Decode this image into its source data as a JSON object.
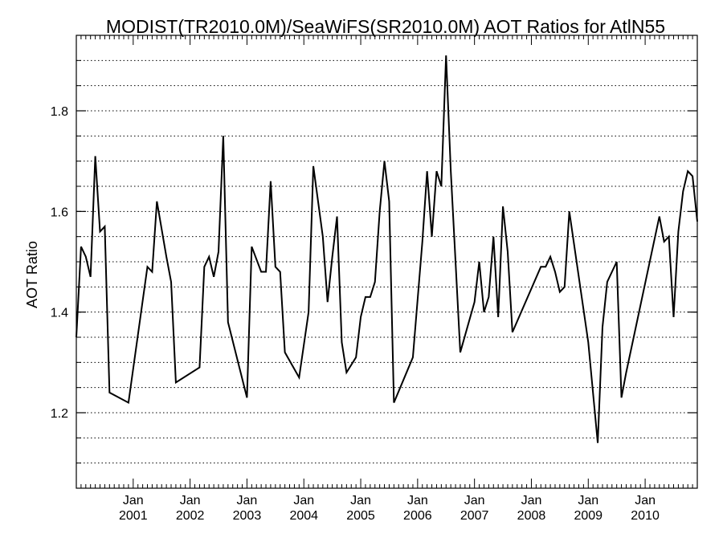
{
  "chart_data": {
    "type": "line",
    "title": "MODIST(TR2010.0M)/SeaWiFS(SR2010.0M)  AOT Ratios for AtlN55",
    "xlabel": "",
    "ylabel": "AOT Ratio",
    "xlim": [
      "2000-01",
      "2010-12"
    ],
    "ylim": [
      1.05,
      1.95
    ],
    "y_ticks": [
      1.2,
      1.4,
      1.6,
      1.8
    ],
    "y_tick_labels": [
      "1.2",
      "1.4",
      "1.6",
      "1.8"
    ],
    "y_minor_step": 0.05,
    "x_ticks": [
      {
        "month": "Jan",
        "year": "2001",
        "date": "2001-01"
      },
      {
        "month": "Jan",
        "year": "2002",
        "date": "2002-01"
      },
      {
        "month": "Jan",
        "year": "2003",
        "date": "2003-01"
      },
      {
        "month": "Jan",
        "year": "2004",
        "date": "2004-01"
      },
      {
        "month": "Jan",
        "year": "2005",
        "date": "2005-01"
      },
      {
        "month": "Jan",
        "year": "2006",
        "date": "2006-01"
      },
      {
        "month": "Jan",
        "year": "2007",
        "date": "2007-01"
      },
      {
        "month": "Jan",
        "year": "2008",
        "date": "2008-01"
      },
      {
        "month": "Jan",
        "year": "2009",
        "date": "2009-01"
      },
      {
        "month": "Jan",
        "year": "2010",
        "date": "2010-01"
      }
    ],
    "grid": "horizontal-dotted",
    "series": [
      {
        "color": "#000000",
        "points": [
          [
            "2000-01",
            1.35
          ],
          [
            "2000-02",
            1.53
          ],
          [
            "2000-03",
            1.51
          ],
          [
            "2000-04",
            1.47
          ],
          [
            "2000-05",
            1.71
          ],
          [
            "2000-06",
            1.56
          ],
          [
            "2000-07",
            1.57
          ],
          [
            "2000-08",
            1.24
          ],
          [
            "2000-12",
            1.22
          ],
          [
            "2001-04",
            1.49
          ],
          [
            "2001-05",
            1.48
          ],
          [
            "2001-06",
            1.62
          ],
          [
            "2001-08",
            1.51
          ],
          [
            "2001-09",
            1.46
          ],
          [
            "2001-10",
            1.26
          ],
          [
            "2002-03",
            1.29
          ],
          [
            "2002-04",
            1.49
          ],
          [
            "2002-05",
            1.51
          ],
          [
            "2002-06",
            1.47
          ],
          [
            "2002-07",
            1.52
          ],
          [
            "2002-08",
            1.75
          ],
          [
            "2002-09",
            1.38
          ],
          [
            "2003-01",
            1.23
          ],
          [
            "2003-02",
            1.53
          ],
          [
            "2003-04",
            1.48
          ],
          [
            "2003-05",
            1.48
          ],
          [
            "2003-06",
            1.66
          ],
          [
            "2003-07",
            1.49
          ],
          [
            "2003-08",
            1.48
          ],
          [
            "2003-09",
            1.32
          ],
          [
            "2003-12",
            1.27
          ],
          [
            "2004-02",
            1.4
          ],
          [
            "2004-03",
            1.69
          ],
          [
            "2004-05",
            1.55
          ],
          [
            "2004-06",
            1.42
          ],
          [
            "2004-07",
            1.51
          ],
          [
            "2004-08",
            1.59
          ],
          [
            "2004-09",
            1.34
          ],
          [
            "2004-10",
            1.28
          ],
          [
            "2004-12",
            1.31
          ],
          [
            "2005-01",
            1.39
          ],
          [
            "2005-02",
            1.43
          ],
          [
            "2005-03",
            1.43
          ],
          [
            "2005-04",
            1.46
          ],
          [
            "2005-05",
            1.6
          ],
          [
            "2005-06",
            1.7
          ],
          [
            "2005-07",
            1.62
          ],
          [
            "2005-08",
            1.22
          ],
          [
            "2005-12",
            1.31
          ],
          [
            "2006-02",
            1.54
          ],
          [
            "2006-03",
            1.68
          ],
          [
            "2006-04",
            1.55
          ],
          [
            "2006-05",
            1.68
          ],
          [
            "2006-06",
            1.65
          ],
          [
            "2006-07",
            1.91
          ],
          [
            "2006-08",
            1.68
          ],
          [
            "2006-10",
            1.32
          ],
          [
            "2007-01",
            1.42
          ],
          [
            "2007-02",
            1.5
          ],
          [
            "2007-03",
            1.4
          ],
          [
            "2007-04",
            1.43
          ],
          [
            "2007-05",
            1.55
          ],
          [
            "2007-06",
            1.39
          ],
          [
            "2007-07",
            1.61
          ],
          [
            "2007-08",
            1.52
          ],
          [
            "2007-09",
            1.36
          ],
          [
            "2008-03",
            1.49
          ],
          [
            "2008-04",
            1.49
          ],
          [
            "2008-05",
            1.51
          ],
          [
            "2008-06",
            1.48
          ],
          [
            "2008-07",
            1.44
          ],
          [
            "2008-08",
            1.45
          ],
          [
            "2008-09",
            1.6
          ],
          [
            "2009-01",
            1.34
          ],
          [
            "2009-03",
            1.14
          ],
          [
            "2009-04",
            1.37
          ],
          [
            "2009-05",
            1.46
          ],
          [
            "2009-07",
            1.5
          ],
          [
            "2009-08",
            1.23
          ],
          [
            "2009-09",
            1.28
          ],
          [
            "2010-04",
            1.59
          ],
          [
            "2010-05",
            1.54
          ],
          [
            "2010-06",
            1.55
          ],
          [
            "2010-07",
            1.39
          ],
          [
            "2010-08",
            1.56
          ],
          [
            "2010-09",
            1.64
          ],
          [
            "2010-10",
            1.68
          ],
          [
            "2010-11",
            1.67
          ],
          [
            "2010-12",
            1.58
          ]
        ]
      }
    ]
  }
}
